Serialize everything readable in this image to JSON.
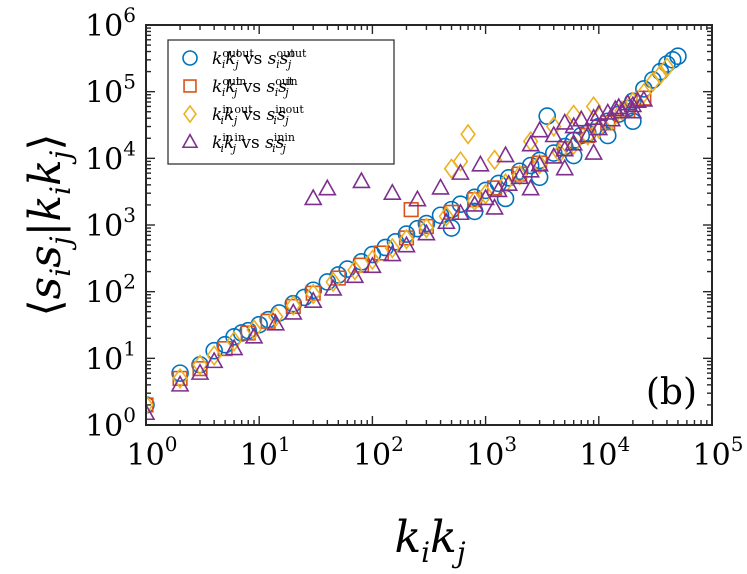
{
  "chart_data": {
    "type": "scatter",
    "panel_label": "(b)",
    "xlabel": {
      "base": "k",
      "sub1": "i",
      "mid": "k",
      "sub2": "j"
    },
    "ylabel": {
      "lead": "⟨",
      "a": "s",
      "a_sub": "i",
      "b": "s",
      "b_sub": "j",
      "bar": "|",
      "c": "k",
      "c_sub": "i",
      "d": "k",
      "d_sub": "j",
      "trail": "⟩"
    },
    "x_scale": "log",
    "y_scale": "log",
    "xlim": [
      1,
      100000
    ],
    "ylim": [
      1,
      1000000
    ],
    "x_ticks": [
      {
        "value": 1,
        "base": "10",
        "exp": "0"
      },
      {
        "value": 10,
        "base": "10",
        "exp": "1"
      },
      {
        "value": 100,
        "base": "10",
        "exp": "2"
      },
      {
        "value": 1000,
        "base": "10",
        "exp": "3"
      },
      {
        "value": 10000,
        "base": "10",
        "exp": "4"
      },
      {
        "value": 100000,
        "base": "10",
        "exp": "5"
      }
    ],
    "y_ticks": [
      {
        "value": 1,
        "base": "10",
        "exp": "0"
      },
      {
        "value": 10,
        "base": "10",
        "exp": "1"
      },
      {
        "value": 100,
        "base": "10",
        "exp": "2"
      },
      {
        "value": 1000,
        "base": "10",
        "exp": "3"
      },
      {
        "value": 10000,
        "base": "10",
        "exp": "4"
      },
      {
        "value": 100000,
        "base": "10",
        "exp": "5"
      },
      {
        "value": 1000000,
        "base": "10",
        "exp": "6"
      }
    ],
    "grid": false,
    "legend_position": "top-left",
    "series": [
      {
        "name": "k_i^out k_j^out vs s_i^out s_j^out",
        "legend": {
          "k1": "k",
          "k1_sub": "i",
          "k1_sup": "out",
          "k2": "k",
          "k2_sub": "j",
          "k2_sup": "out",
          "vs": "vs",
          "s1": "s",
          "s1_sub": "i",
          "s1_sup": "out",
          "s2": "s",
          "s2_sub": "j",
          "s2_sup": "out"
        },
        "marker": "circle",
        "color": "#0072BD",
        "points": [
          [
            1,
            2
          ],
          [
            2,
            6
          ],
          [
            3,
            8
          ],
          [
            4,
            13
          ],
          [
            5,
            16
          ],
          [
            6,
            21
          ],
          [
            7,
            24
          ],
          [
            8,
            26
          ],
          [
            10,
            32
          ],
          [
            12,
            38
          ],
          [
            15,
            48
          ],
          [
            20,
            66
          ],
          [
            25,
            82
          ],
          [
            30,
            105
          ],
          [
            40,
            140
          ],
          [
            50,
            178
          ],
          [
            60,
            218
          ],
          [
            80,
            280
          ],
          [
            100,
            360
          ],
          [
            130,
            460
          ],
          [
            160,
            560
          ],
          [
            200,
            730
          ],
          [
            250,
            880
          ],
          [
            300,
            1050
          ],
          [
            400,
            1400
          ],
          [
            500,
            1700
          ],
          [
            600,
            2050
          ],
          [
            800,
            2600
          ],
          [
            1000,
            3300
          ],
          [
            1300,
            4200
          ],
          [
            1600,
            5100
          ],
          [
            2000,
            6400
          ],
          [
            2500,
            7800
          ],
          [
            3000,
            9300
          ],
          [
            3500,
            43000
          ],
          [
            4000,
            12000
          ],
          [
            5000,
            15000
          ],
          [
            6000,
            18500
          ],
          [
            7000,
            22000
          ],
          [
            8000,
            24000
          ],
          [
            10000,
            30000
          ],
          [
            12000,
            36000
          ],
          [
            15000,
            46000
          ],
          [
            18000,
            56000
          ],
          [
            20000,
            72000
          ],
          [
            25000,
            110000
          ],
          [
            30000,
            150000
          ],
          [
            35000,
            200000
          ],
          [
            40000,
            260000
          ],
          [
            45000,
            300000
          ],
          [
            50000,
            340000
          ],
          [
            500,
            900
          ],
          [
            800,
            1600
          ],
          [
            1500,
            2500
          ],
          [
            3000,
            5200
          ],
          [
            6000,
            11000
          ],
          [
            12000,
            22000
          ],
          [
            20000,
            36000
          ]
        ]
      },
      {
        "name": "k_i^out k_j^in vs s_i^out s_j^in",
        "legend": {
          "k1": "k",
          "k1_sub": "i",
          "k1_sup": "out",
          "k2": "k",
          "k2_sub": "j",
          "k2_sup": "in",
          "vs": "vs",
          "s1": "s",
          "s1_sub": "i",
          "s1_sup": "out",
          "s2": "s",
          "s2_sub": "j",
          "s2_sup": "in"
        },
        "marker": "square",
        "color": "#D95319",
        "points": [
          [
            1,
            2
          ],
          [
            2,
            5
          ],
          [
            3,
            7
          ],
          [
            5,
            14
          ],
          [
            8,
            24
          ],
          [
            12,
            36
          ],
          [
            20,
            60
          ],
          [
            30,
            95
          ],
          [
            50,
            160
          ],
          [
            80,
            250
          ],
          [
            120,
            380
          ],
          [
            200,
            640
          ],
          [
            220,
            1700
          ],
          [
            300,
            950
          ],
          [
            500,
            1550
          ],
          [
            800,
            2400
          ],
          [
            1200,
            3600
          ],
          [
            2000,
            5800
          ],
          [
            3000,
            8500
          ],
          [
            5000,
            14000
          ],
          [
            8000,
            22000
          ],
          [
            12000,
            34000
          ],
          [
            18000,
            52000
          ],
          [
            25000,
            80000
          ]
        ]
      },
      {
        "name": "k_i^in k_j^out vs s_i^in s_j^out",
        "legend": {
          "k1": "k",
          "k1_sub": "i",
          "k1_sup": "in",
          "k2": "k",
          "k2_sub": "j",
          "k2_sup": "out",
          "vs": "vs",
          "s1": "s",
          "s1_sub": "i",
          "s1_sup": "in",
          "s2": "s",
          "s2_sub": "j",
          "s2_sup": "out"
        },
        "marker": "diamond",
        "color": "#EDB120",
        "points": [
          [
            1,
            2
          ],
          [
            2,
            5
          ],
          [
            3,
            8
          ],
          [
            4,
            11
          ],
          [
            6,
            18
          ],
          [
            9,
            27
          ],
          [
            14,
            42
          ],
          [
            20,
            62
          ],
          [
            30,
            92
          ],
          [
            45,
            140
          ],
          [
            70,
            210
          ],
          [
            100,
            300
          ],
          [
            150,
            450
          ],
          [
            200,
            610
          ],
          [
            300,
            900
          ],
          [
            450,
            1350
          ],
          [
            500,
            7000
          ],
          [
            600,
            9000
          ],
          [
            700,
            23000
          ],
          [
            800,
            2300
          ],
          [
            1000,
            2900
          ],
          [
            1500,
            4200
          ],
          [
            2000,
            5600
          ],
          [
            3000,
            8200
          ],
          [
            4500,
            12000
          ],
          [
            6000,
            16000
          ],
          [
            8000,
            22000
          ],
          [
            10000,
            28000
          ],
          [
            13000,
            38000
          ],
          [
            16000,
            52000
          ],
          [
            20000,
            70000
          ],
          [
            25000,
            95000
          ],
          [
            30000,
            140000
          ],
          [
            35000,
            180000
          ],
          [
            40000,
            230000
          ],
          [
            4000,
            30000
          ],
          [
            6000,
            45000
          ],
          [
            9000,
            60000
          ],
          [
            2500,
            18000
          ],
          [
            1200,
            9500
          ]
        ]
      },
      {
        "name": "k_i^in k_j^in vs s_i^in s_j^in",
        "legend": {
          "k1": "k",
          "k1_sub": "i",
          "k1_sup": "in",
          "k2": "k",
          "k2_sub": "j",
          "k2_sup": "in",
          "vs": "vs",
          "s1": "s",
          "s1_sub": "i",
          "s1_sup": "in",
          "s2": "s",
          "s2_sub": "j",
          "s2_sup": "in"
        },
        "marker": "triangle",
        "color": "#7E2F8E",
        "points": [
          [
            1,
            1.5
          ],
          [
            2,
            4
          ],
          [
            3,
            6
          ],
          [
            4,
            9
          ],
          [
            6,
            14
          ],
          [
            9,
            21
          ],
          [
            14,
            33
          ],
          [
            20,
            48
          ],
          [
            30,
            72
          ],
          [
            45,
            110
          ],
          [
            70,
            170
          ],
          [
            100,
            240
          ],
          [
            150,
            360
          ],
          [
            200,
            490
          ],
          [
            300,
            740
          ],
          [
            450,
            1100
          ],
          [
            600,
            1500
          ],
          [
            800,
            2000
          ],
          [
            1000,
            2500
          ],
          [
            1300,
            3300
          ],
          [
            1600,
            4100
          ],
          [
            2000,
            5200
          ],
          [
            2500,
            6500
          ],
          [
            3000,
            8000
          ],
          [
            4000,
            10500
          ],
          [
            5000,
            13500
          ],
          [
            6000,
            16500
          ],
          [
            8000,
            22000
          ],
          [
            10000,
            28000
          ],
          [
            13000,
            38000
          ],
          [
            16000,
            50000
          ],
          [
            20000,
            62000
          ],
          [
            25000,
            75000
          ],
          [
            30,
            2500
          ],
          [
            40,
            3500
          ],
          [
            80,
            4500
          ],
          [
            150,
            3000
          ],
          [
            250,
            2400
          ],
          [
            400,
            3600
          ],
          [
            600,
            6000
          ],
          [
            900,
            8000
          ],
          [
            1500,
            11000
          ],
          [
            2500,
            16000
          ],
          [
            4000,
            22000
          ],
          [
            6000,
            30000
          ],
          [
            9000,
            40000
          ],
          [
            12000,
            48000
          ],
          [
            15000,
            58000
          ],
          [
            18000,
            66000
          ],
          [
            22000,
            72000
          ],
          [
            3000,
            26000
          ],
          [
            5000,
            34000
          ],
          [
            7000,
            38000
          ],
          [
            10000,
            46000
          ],
          [
            14000,
            54000
          ],
          [
            20000,
            50000
          ],
          [
            1200,
            1800
          ],
          [
            2500,
            3500
          ],
          [
            5000,
            7000
          ],
          [
            9000,
            12000
          ]
        ]
      }
    ]
  }
}
